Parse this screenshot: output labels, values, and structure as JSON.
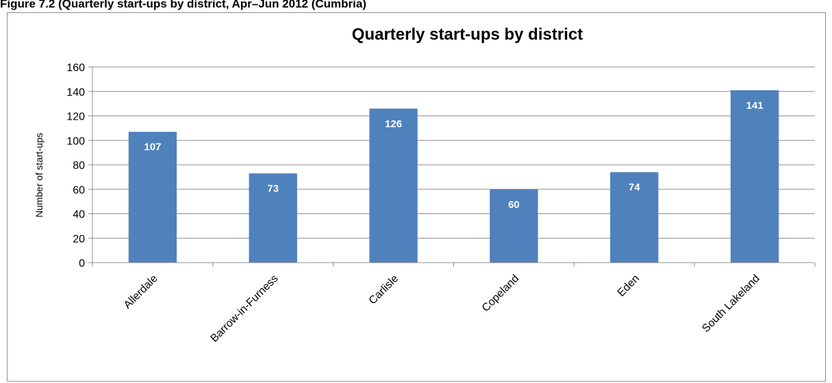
{
  "caption": "Figure 7.2 (Quarterly start-ups by district, Apr–Jun 2012 (Cumbria)",
  "chart_data": {
    "type": "bar",
    "title": "Quarterly start-ups by district",
    "xlabel": "",
    "ylabel": "Number of start-ups",
    "categories": [
      "Allerdale",
      "Barrow-in-Furness",
      "Carlisle",
      "Copeland",
      "Eden",
      "South Lakeland"
    ],
    "values": [
      107,
      73,
      126,
      60,
      74,
      141
    ],
    "ylim": [
      0,
      160
    ],
    "yticks": [
      0,
      20,
      40,
      60,
      80,
      100,
      120,
      140,
      160
    ],
    "grid": true,
    "bar_color": "#4f81bd",
    "data_labels": true
  }
}
